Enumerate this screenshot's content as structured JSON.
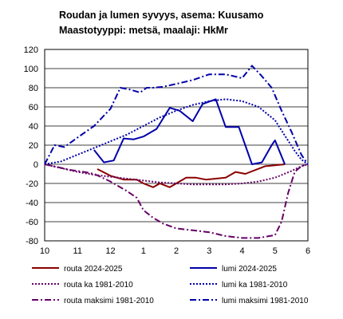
{
  "title_lines": [
    "Roudan ja lumen syvyys, asema: Kuusamo",
    "Maastotyyppi: metsä, maalaji: HkMr"
  ],
  "chart_data": {
    "type": "line",
    "title": "Roudan ja lumen syvyys, asema: Kuusamo Maastotyyppi: metsä, maalaji: HkMr",
    "xlabel": "",
    "ylabel": "",
    "x_ticks": [
      "10",
      "11",
      "12",
      "1",
      "2",
      "3",
      "4",
      "5",
      "6"
    ],
    "xlim": [
      10,
      18
    ],
    "ylim": [
      -80,
      120
    ],
    "y_ticks": [
      -80,
      -60,
      -40,
      -20,
      0,
      20,
      40,
      60,
      80,
      100,
      120
    ],
    "grid": "horizontal",
    "legend_position": "bottom",
    "series": [
      {
        "name": "routa 2024-2025",
        "color": "#8b0000",
        "style": "solid",
        "width": 2,
        "points": [
          [
            11.6,
            -5
          ],
          [
            12.0,
            -12
          ],
          [
            12.4,
            -16
          ],
          [
            12.8,
            -16
          ],
          [
            13.0,
            -20
          ],
          [
            13.3,
            -24
          ],
          [
            13.5,
            -20
          ],
          [
            13.8,
            -24
          ],
          [
            14.0,
            -20
          ],
          [
            14.3,
            -14
          ],
          [
            14.6,
            -14
          ],
          [
            14.9,
            -16
          ],
          [
            15.2,
            -15
          ],
          [
            15.5,
            -14
          ],
          [
            15.8,
            -8
          ],
          [
            16.1,
            -10
          ],
          [
            16.4,
            -6
          ],
          [
            16.7,
            -2
          ],
          [
            17.0,
            -1
          ],
          [
            17.3,
            0
          ]
        ]
      },
      {
        "name": "lumi 2024-2025",
        "color": "#0000aa",
        "style": "solid",
        "width": 2,
        "points": [
          [
            11.5,
            15
          ],
          [
            11.8,
            2
          ],
          [
            12.1,
            4
          ],
          [
            12.4,
            27
          ],
          [
            12.7,
            26
          ],
          [
            13.0,
            29
          ],
          [
            13.4,
            37
          ],
          [
            13.8,
            59
          ],
          [
            14.1,
            56
          ],
          [
            14.5,
            45
          ],
          [
            14.8,
            63
          ],
          [
            15.2,
            68
          ],
          [
            15.5,
            39
          ],
          [
            15.9,
            39
          ],
          [
            16.3,
            0
          ],
          [
            16.6,
            2
          ],
          [
            16.9,
            20
          ],
          [
            17.0,
            25
          ],
          [
            17.3,
            0
          ]
        ]
      },
      {
        "name": "routa ka 1981-2010",
        "color": "#660066",
        "style": "dotted",
        "width": 2,
        "points": [
          [
            10.0,
            0
          ],
          [
            10.5,
            -4
          ],
          [
            11.0,
            -8
          ],
          [
            11.5,
            -11
          ],
          [
            12.0,
            -13
          ],
          [
            12.5,
            -15
          ],
          [
            13.0,
            -17
          ],
          [
            13.5,
            -19
          ],
          [
            14.0,
            -20
          ],
          [
            14.5,
            -21
          ],
          [
            15.0,
            -21
          ],
          [
            15.5,
            -21
          ],
          [
            16.0,
            -20
          ],
          [
            16.5,
            -18
          ],
          [
            17.0,
            -14
          ],
          [
            17.5,
            -7
          ],
          [
            17.8,
            -2
          ],
          [
            18.0,
            0
          ]
        ]
      },
      {
        "name": "lumi ka 1981-2010",
        "color": "#0000aa",
        "style": "dotted",
        "width": 2,
        "points": [
          [
            10.0,
            0
          ],
          [
            10.5,
            3
          ],
          [
            11.0,
            10
          ],
          [
            11.5,
            17
          ],
          [
            12.0,
            24
          ],
          [
            12.5,
            31
          ],
          [
            13.0,
            40
          ],
          [
            13.5,
            49
          ],
          [
            14.0,
            56
          ],
          [
            14.5,
            62
          ],
          [
            15.0,
            66
          ],
          [
            15.5,
            68
          ],
          [
            16.0,
            66
          ],
          [
            16.5,
            60
          ],
          [
            17.0,
            46
          ],
          [
            17.3,
            30
          ],
          [
            17.6,
            14
          ],
          [
            17.8,
            5
          ],
          [
            18.0,
            0
          ]
        ]
      },
      {
        "name": "routa maksimi 1981-2010",
        "color": "#660066",
        "style": "dashdot",
        "width": 2,
        "points": [
          [
            10.0,
            0
          ],
          [
            10.4,
            -3
          ],
          [
            10.8,
            -6
          ],
          [
            11.2,
            -8
          ],
          [
            11.5,
            -10
          ],
          [
            12.0,
            -18
          ],
          [
            12.5,
            -28
          ],
          [
            12.8,
            -35
          ],
          [
            13.0,
            -48
          ],
          [
            13.3,
            -56
          ],
          [
            13.6,
            -62
          ],
          [
            14.0,
            -67
          ],
          [
            14.5,
            -69
          ],
          [
            15.0,
            -71
          ],
          [
            15.5,
            -75
          ],
          [
            16.0,
            -77
          ],
          [
            16.5,
            -77
          ],
          [
            17.0,
            -74
          ],
          [
            17.2,
            -60
          ],
          [
            17.4,
            -30
          ],
          [
            17.6,
            -8
          ],
          [
            17.8,
            -2
          ],
          [
            18.0,
            0
          ]
        ]
      },
      {
        "name": "lumi maksimi 1981-2010",
        "color": "#0000aa",
        "style": "dashdot",
        "width": 2,
        "points": [
          [
            10.0,
            0
          ],
          [
            10.3,
            20
          ],
          [
            10.6,
            18
          ],
          [
            11.0,
            28
          ],
          [
            11.5,
            40
          ],
          [
            12.0,
            58
          ],
          [
            12.3,
            80
          ],
          [
            12.6,
            78
          ],
          [
            12.9,
            75
          ],
          [
            13.1,
            80
          ],
          [
            13.3,
            80
          ],
          [
            13.6,
            81
          ],
          [
            14.0,
            84
          ],
          [
            14.5,
            88
          ],
          [
            15.0,
            94
          ],
          [
            15.5,
            94
          ],
          [
            16.0,
            90
          ],
          [
            16.3,
            103
          ],
          [
            16.6,
            92
          ],
          [
            16.9,
            80
          ],
          [
            17.2,
            56
          ],
          [
            17.5,
            34
          ],
          [
            17.8,
            10
          ],
          [
            18.0,
            0
          ]
        ]
      }
    ]
  }
}
